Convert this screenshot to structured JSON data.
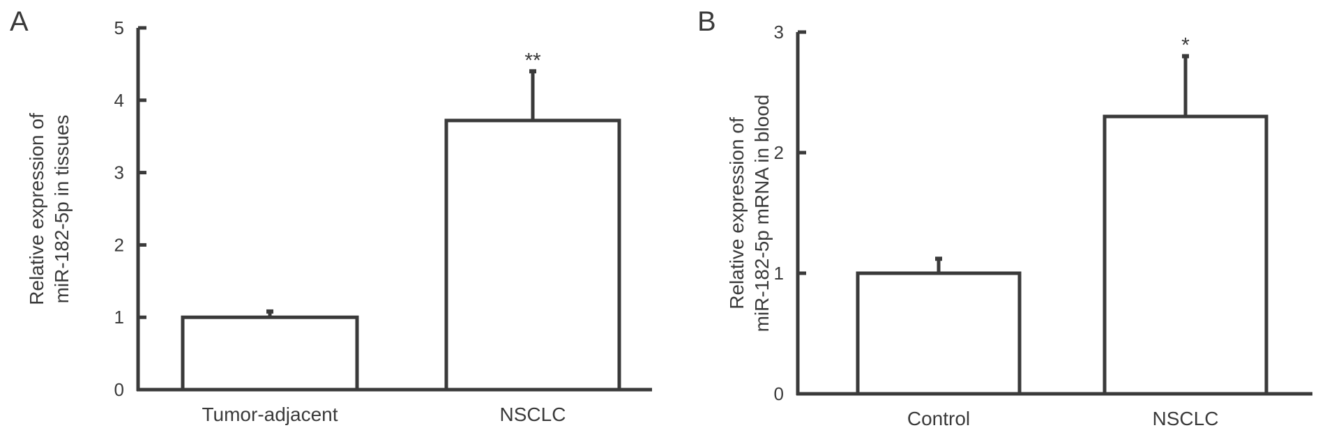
{
  "chart_data": [
    {
      "type": "bar",
      "panel": "A",
      "title": "",
      "ylabel_lines": [
        "Relative expression of",
        "miR-182-5p in tissues"
      ],
      "xlabel": "",
      "categories": [
        "Tumor-adjacent",
        "NSCLC"
      ],
      "values": [
        1.0,
        3.72
      ],
      "error": [
        0.08,
        0.68
      ],
      "significance": [
        "",
        "**"
      ],
      "ylim": [
        0,
        5
      ],
      "yticks": [
        "0",
        "1",
        "2",
        "3",
        "4",
        "5"
      ],
      "grid": false
    },
    {
      "type": "bar",
      "panel": "B",
      "title": "",
      "ylabel_lines": [
        "Relative expression of",
        "miR-182-5p mRNA in blood"
      ],
      "xlabel": "",
      "categories": [
        "Control",
        "NSCLC"
      ],
      "values": [
        1.0,
        2.3
      ],
      "error": [
        0.12,
        0.5
      ],
      "significance": [
        "",
        "*"
      ],
      "ylim": [
        0,
        3
      ],
      "yticks": [
        "0",
        "1",
        "2",
        "3"
      ],
      "grid": false
    }
  ]
}
